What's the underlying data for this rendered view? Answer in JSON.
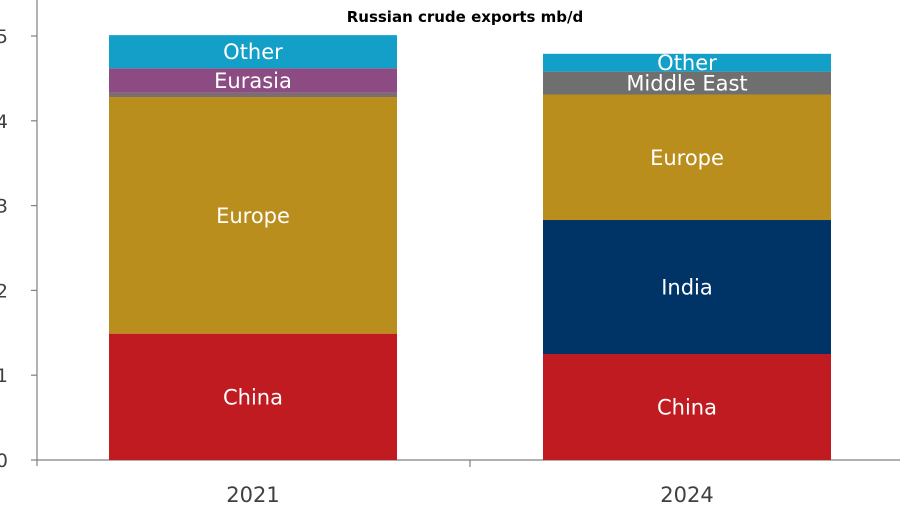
{
  "chart_data": {
    "type": "bar",
    "stacked": true,
    "title": "Russian crude exports mb/d",
    "categories": [
      "2021",
      "2024"
    ],
    "ylim": [
      0,
      5
    ],
    "yticks": [
      0,
      1,
      2,
      3,
      4,
      5
    ],
    "grid": false,
    "legend": "none (segments labelled inside bars)",
    "stacks": [
      {
        "category": "2021",
        "segments": [
          {
            "label": "China",
            "value": 1.49,
            "color": "#bf1b21"
          },
          {
            "label": "Europe",
            "value": 2.79,
            "color": "#b98e1d"
          },
          {
            "label": "",
            "value": 0.05,
            "color": "#7a6e6e"
          },
          {
            "label": "Eurasia",
            "value": 0.29,
            "color": "#8c4b83"
          },
          {
            "label": "Other",
            "value": 0.39,
            "color": "#139fc7"
          }
        ]
      },
      {
        "category": "2024",
        "segments": [
          {
            "label": "China",
            "value": 1.25,
            "color": "#bf1b21"
          },
          {
            "label": "India",
            "value": 1.58,
            "color": "#003366"
          },
          {
            "label": "Europe",
            "value": 1.48,
            "color": "#b98e1d"
          },
          {
            "label": "Middle East",
            "value": 0.27,
            "color": "#6f6f6f"
          },
          {
            "label": "Other",
            "value": 0.21,
            "color": "#139fc7"
          }
        ]
      }
    ]
  }
}
